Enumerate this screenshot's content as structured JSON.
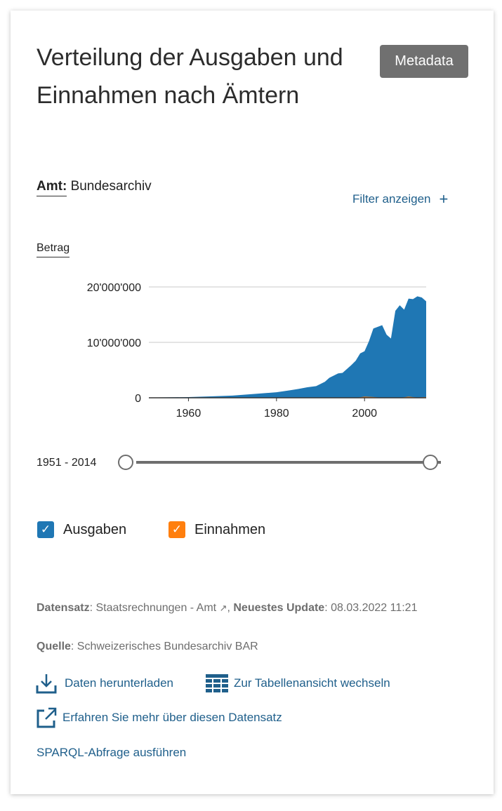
{
  "title": "Verteilung der Ausgaben und Einnahmen nach Ämtern",
  "metadata_button": "Metadata",
  "filter": {
    "label": "Amt:",
    "value": "Bundesarchiv",
    "toggle": "Filter anzeigen",
    "toggle_icon": "plus-icon"
  },
  "measure": "Betrag",
  "colors": {
    "ausgaben": "#1f77b4",
    "einnahmen": "#ff7f0e",
    "link": "#1f5f8b"
  },
  "chart_data": {
    "type": "area",
    "xlim": [
      1951,
      2014
    ],
    "ylim": [
      0,
      20000000
    ],
    "x_ticks": [
      "1960",
      "1980",
      "2000"
    ],
    "y_ticks": [
      "0",
      "10'000'000",
      "20'000'000"
    ],
    "grid": true,
    "series": [
      {
        "name": "Ausgaben",
        "x": [
          1951,
          1955,
          1960,
          1965,
          1970,
          1975,
          1980,
          1983,
          1985,
          1987,
          1989,
          1991,
          1992,
          1994,
          1995,
          1997,
          1998,
          1999,
          2000,
          2001,
          2002,
          2003,
          2004,
          2005,
          2006,
          2007,
          2008,
          2009,
          2010,
          2011,
          2012,
          2013,
          2014
        ],
        "values": [
          50000,
          80000,
          120000,
          250000,
          400000,
          700000,
          1000000,
          1350000,
          1600000,
          1900000,
          2100000,
          2900000,
          3600000,
          4400000,
          4500000,
          5900000,
          6700000,
          8000000,
          8400000,
          10200000,
          12500000,
          12800000,
          13100000,
          11400000,
          10700000,
          15700000,
          16700000,
          15900000,
          17900000,
          17800000,
          18300000,
          18100000,
          17400000
        ]
      },
      {
        "name": "Einnahmen",
        "x": [
          1951,
          1998,
          2000,
          2002,
          2004,
          2008,
          2010,
          2012,
          2014
        ],
        "values": [
          0,
          0,
          200000,
          150000,
          0,
          0,
          200000,
          50000,
          150000
        ]
      }
    ]
  },
  "range": {
    "label": "1951 - 2014",
    "start": 1951,
    "end": 2014
  },
  "legend": [
    {
      "label": "Ausgaben",
      "checked": true
    },
    {
      "label": "Einnahmen",
      "checked": true
    }
  ],
  "info": {
    "dataset_label": "Datensatz",
    "dataset_value": "Staatsrechnungen - Amt",
    "update_label": "Neuestes Update",
    "update_value": "08.03.2022 11:21",
    "source_label": "Quelle",
    "source_value": "Schweizerisches Bundesarchiv BAR"
  },
  "links": {
    "download": "Daten herunterladen",
    "table": "Zur Tabellenansicht wechseln",
    "learn_more": "Erfahren Sie mehr über diesen Datensatz",
    "sparql": "SPARQL-Abfrage ausführen"
  }
}
